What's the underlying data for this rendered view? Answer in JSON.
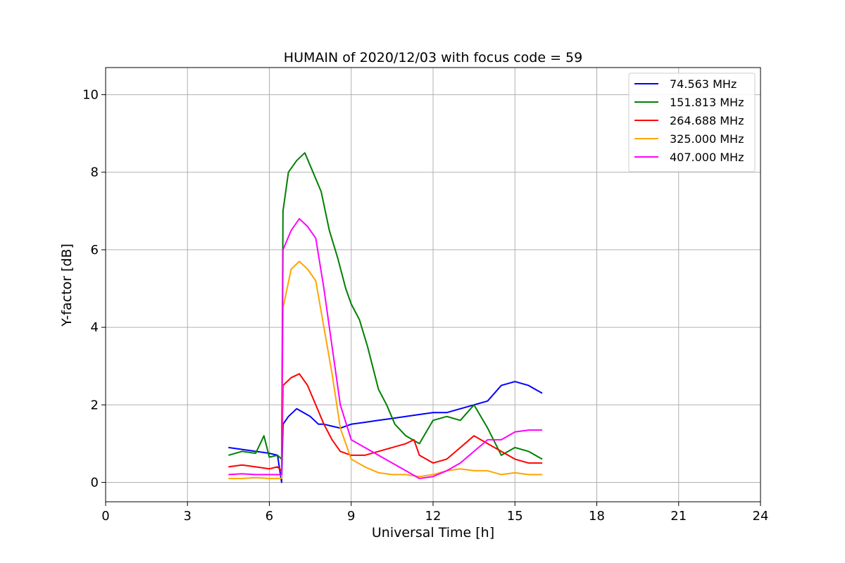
{
  "chart_data": {
    "type": "line",
    "title": "HUMAIN of 2020/12/03 with focus code = 59",
    "xlabel": "Universal Time [h]",
    "ylabel": "Y-factor [dB]",
    "xlim": [
      0,
      24
    ],
    "ylim": [
      -0.5,
      10.7
    ],
    "xticks": [
      0,
      3,
      6,
      9,
      12,
      15,
      18,
      21,
      24
    ],
    "yticks": [
      0,
      2,
      4,
      6,
      8,
      10
    ],
    "grid": true,
    "legend_position": "top-right",
    "series": [
      {
        "name": " 74.563 MHz",
        "color": "#0000ff",
        "x": [
          4.5,
          5.0,
          5.5,
          6.0,
          6.3,
          6.45,
          6.5,
          6.7,
          7.0,
          7.5,
          7.8,
          8.0,
          8.3,
          8.6,
          9.0,
          9.5,
          10.0,
          10.5,
          11.0,
          11.5,
          12.0,
          12.5,
          13.0,
          13.5,
          14.0,
          14.5,
          15.0,
          15.5,
          16.0
        ],
        "y": [
          0.9,
          0.85,
          0.8,
          0.75,
          0.7,
          0.0,
          1.5,
          1.7,
          1.9,
          1.7,
          1.5,
          1.5,
          1.45,
          1.4,
          1.5,
          1.55,
          1.6,
          1.65,
          1.7,
          1.75,
          1.8,
          1.8,
          1.9,
          2.0,
          2.1,
          2.5,
          2.6,
          2.5,
          2.3
        ]
      },
      {
        "name": "151.813 MHz",
        "color": "#008000",
        "x": [
          4.5,
          5.0,
          5.5,
          5.8,
          6.0,
          6.3,
          6.45,
          6.5,
          6.7,
          7.0,
          7.3,
          7.6,
          7.9,
          8.2,
          8.5,
          8.8,
          9.0,
          9.3,
          9.6,
          10.0,
          10.3,
          10.6,
          11.0,
          11.5,
          12.0,
          12.5,
          13.0,
          13.5,
          14.0,
          14.5,
          15.0,
          15.5,
          16.0
        ],
        "y": [
          0.7,
          0.8,
          0.75,
          1.2,
          0.65,
          0.7,
          0.6,
          7.0,
          8.0,
          8.3,
          8.5,
          8.0,
          7.5,
          6.5,
          5.8,
          5.0,
          4.6,
          4.2,
          3.5,
          2.4,
          2.0,
          1.5,
          1.2,
          1.0,
          1.6,
          1.7,
          1.6,
          2.0,
          1.4,
          0.7,
          0.9,
          0.8,
          0.6
        ]
      },
      {
        "name": "264.688 MHz",
        "color": "#ff0000",
        "x": [
          4.5,
          5.0,
          5.5,
          6.0,
          6.3,
          6.45,
          6.5,
          6.8,
          7.1,
          7.4,
          7.7,
          8.0,
          8.3,
          8.6,
          9.0,
          9.5,
          10.0,
          10.5,
          11.0,
          11.3,
          11.5,
          12.0,
          12.5,
          13.0,
          13.5,
          14.0,
          14.5,
          15.0,
          15.5,
          16.0
        ],
        "y": [
          0.4,
          0.45,
          0.4,
          0.35,
          0.4,
          0.3,
          2.5,
          2.7,
          2.8,
          2.5,
          2.0,
          1.5,
          1.1,
          0.8,
          0.7,
          0.7,
          0.8,
          0.9,
          1.0,
          1.1,
          0.7,
          0.5,
          0.6,
          0.9,
          1.2,
          1.0,
          0.8,
          0.6,
          0.5,
          0.5
        ]
      },
      {
        "name": "325.000 MHz",
        "color": "#ffa500",
        "x": [
          4.5,
          5.0,
          5.5,
          6.0,
          6.3,
          6.45,
          6.5,
          6.8,
          7.1,
          7.4,
          7.7,
          8.0,
          8.3,
          8.6,
          9.0,
          9.5,
          10.0,
          10.5,
          11.0,
          11.5,
          12.0,
          12.5,
          13.0,
          13.5,
          14.0,
          14.5,
          15.0,
          15.5,
          16.0
        ],
        "y": [
          0.1,
          0.1,
          0.12,
          0.1,
          0.1,
          0.1,
          4.5,
          5.5,
          5.7,
          5.5,
          5.2,
          4.0,
          2.8,
          1.4,
          0.6,
          0.4,
          0.25,
          0.2,
          0.2,
          0.15,
          0.2,
          0.3,
          0.35,
          0.3,
          0.3,
          0.2,
          0.25,
          0.2,
          0.2
        ]
      },
      {
        "name": "407.000 MHz",
        "color": "#ff00ff",
        "x": [
          4.5,
          5.0,
          5.5,
          6.0,
          6.3,
          6.45,
          6.5,
          6.8,
          7.1,
          7.4,
          7.7,
          8.0,
          8.3,
          8.6,
          9.0,
          9.5,
          10.0,
          10.5,
          11.0,
          11.5,
          12.0,
          12.5,
          13.0,
          13.5,
          14.0,
          14.5,
          15.0,
          15.5,
          16.0
        ],
        "y": [
          0.2,
          0.22,
          0.2,
          0.2,
          0.2,
          0.2,
          6.0,
          6.5,
          6.8,
          6.6,
          6.3,
          5.0,
          3.5,
          2.0,
          1.1,
          0.9,
          0.7,
          0.5,
          0.3,
          0.1,
          0.15,
          0.3,
          0.5,
          0.8,
          1.1,
          1.1,
          1.3,
          1.35,
          1.35
        ]
      }
    ]
  }
}
